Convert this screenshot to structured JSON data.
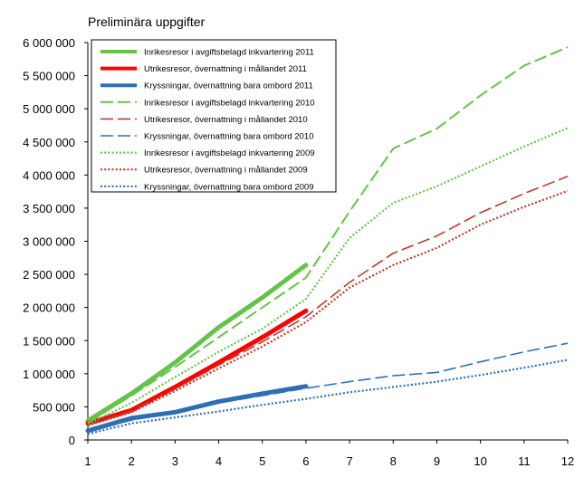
{
  "chart_data": {
    "type": "line",
    "title": "Preliminära uppgifter",
    "xlabel": "",
    "ylabel": "",
    "xlim": [
      1,
      12
    ],
    "ylim": [
      0,
      6000000
    ],
    "y_ticks": [
      0,
      500000,
      1000000,
      1500000,
      2000000,
      2500000,
      3000000,
      3500000,
      4000000,
      4500000,
      5000000,
      5500000,
      6000000
    ],
    "y_tick_labels": [
      "0",
      "500 000",
      "1 000 000",
      "1 500 000",
      "2 000 000",
      "2 500 000",
      "3 000 000",
      "3 500 000",
      "4 000 000",
      "4 500 000",
      "5 000 000",
      "5 500 000",
      "6 000 000"
    ],
    "x_ticks": [
      1,
      2,
      3,
      4,
      5,
      6,
      7,
      8,
      9,
      10,
      11,
      12
    ],
    "x_tick_labels": [
      "1",
      "2",
      "3",
      "4",
      "5",
      "6",
      "7",
      "8",
      "9",
      "10",
      "11",
      "12"
    ],
    "grid": false,
    "legend_position": "top-left",
    "series": [
      {
        "name": "Inrikesresor i avgiftsbelagd inkvartering 2011",
        "color": "#66c34a",
        "style": "solid",
        "width": 5,
        "x": [
          1,
          2,
          3,
          4,
          5,
          6
        ],
        "values": [
          290000,
          700000,
          1170000,
          1700000,
          2150000,
          2640000
        ]
      },
      {
        "name": "Utrikesresor, övernattning  i mållandet 2011",
        "color": "#ff0000",
        "style": "solid",
        "width": 5,
        "x": [
          1,
          2,
          3,
          4,
          5,
          6
        ],
        "values": [
          250000,
          450000,
          800000,
          1170000,
          1550000,
          1950000
        ]
      },
      {
        "name": "Kryssningar, övernattning  bara ombord 2011",
        "color": "#2c6fb5",
        "style": "solid",
        "width": 5,
        "x": [
          1,
          2,
          3,
          4,
          5,
          6
        ],
        "values": [
          140000,
          330000,
          420000,
          580000,
          700000,
          810000
        ]
      },
      {
        "name": "Inrikesresor i avgiftsbelagd inkvartering 2010",
        "color": "#66c34a",
        "style": "dash",
        "width": 2,
        "x": [
          1,
          2,
          3,
          4,
          5,
          6,
          7,
          8,
          9,
          10,
          11,
          12
        ],
        "values": [
          260000,
          670000,
          1100000,
          1550000,
          2000000,
          2450000,
          3450000,
          4400000,
          4700000,
          5200000,
          5650000,
          5930000
        ]
      },
      {
        "name": "Utrikesresor, övernattning  i mållandet 2010",
        "color": "#c0392b",
        "style": "dash",
        "width": 1.6,
        "x": [
          1,
          2,
          3,
          4,
          5,
          6,
          7,
          8,
          9,
          10,
          11,
          12
        ],
        "values": [
          230000,
          440000,
          770000,
          1130000,
          1480000,
          1860000,
          2380000,
          2820000,
          3080000,
          3430000,
          3720000,
          3980000
        ]
      },
      {
        "name": "Kryssningar, övernattning  bara ombord 2010",
        "color": "#2c6fb5",
        "style": "dash",
        "width": 1.6,
        "x": [
          1,
          2,
          3,
          4,
          5,
          6,
          7,
          8,
          9,
          10,
          11,
          12
        ],
        "values": [
          130000,
          300000,
          420000,
          560000,
          670000,
          780000,
          880000,
          970000,
          1020000,
          1180000,
          1330000,
          1460000
        ]
      },
      {
        "name": "Inrikesresor i avgiftsbelagd inkvartering 2009",
        "color": "#66c34a",
        "style": "dot",
        "width": 2.2,
        "x": [
          1,
          2,
          3,
          4,
          5,
          6,
          7,
          8,
          9,
          10,
          11,
          12
        ],
        "values": [
          240000,
          560000,
          950000,
          1330000,
          1680000,
          2130000,
          3050000,
          3580000,
          3830000,
          4130000,
          4430000,
          4710000
        ]
      },
      {
        "name": "Utrikesresor, övernattning  i mållandet 2009",
        "color": "#c0392b",
        "style": "dot",
        "width": 2.2,
        "x": [
          1,
          2,
          3,
          4,
          5,
          6,
          7,
          8,
          9,
          10,
          11,
          12
        ],
        "values": [
          220000,
          420000,
          740000,
          1080000,
          1410000,
          1780000,
          2300000,
          2640000,
          2900000,
          3250000,
          3520000,
          3760000
        ]
      },
      {
        "name": "Kryssningar, övernattning  bara ombord 2009",
        "color": "#2c6fb5",
        "style": "dot",
        "width": 2.2,
        "x": [
          1,
          2,
          3,
          4,
          5,
          6,
          7,
          8,
          9,
          10,
          11,
          12
        ],
        "values": [
          90000,
          250000,
          340000,
          430000,
          530000,
          620000,
          720000,
          800000,
          880000,
          980000,
          1090000,
          1210000
        ]
      }
    ]
  }
}
